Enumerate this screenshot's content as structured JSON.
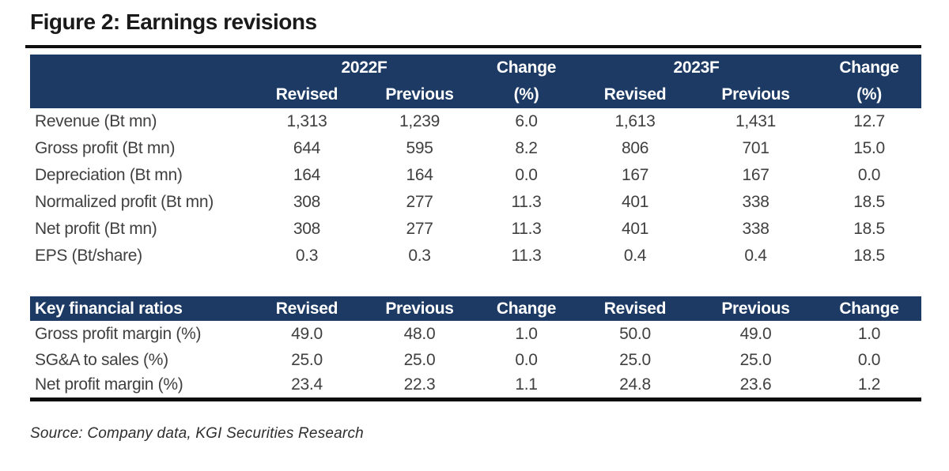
{
  "title": "Figure 2: Earnings revisions",
  "source": "Source: Company data, KGI Securities Research",
  "colors": {
    "header_bg": "#1c3a63",
    "header_text": "#ffffff",
    "body_text": "#404040",
    "rule": "#0e0e0e"
  },
  "earnings_table": {
    "header": {
      "year1": "2022F",
      "year2": "2023F",
      "change": "Change",
      "pct": "(%)",
      "revised": "Revised",
      "previous": "Previous"
    },
    "rows": [
      {
        "label": "Revenue (Bt mn)",
        "values": [
          "1,313",
          "1,239",
          "6.0",
          "1,613",
          "1,431",
          "12.7"
        ]
      },
      {
        "label": "Gross profit (Bt mn)",
        "values": [
          "644",
          "595",
          "8.2",
          "806",
          "701",
          "15.0"
        ]
      },
      {
        "label": "Depreciation (Bt mn)",
        "values": [
          "164",
          "164",
          "0.0",
          "167",
          "167",
          "0.0"
        ]
      },
      {
        "label": "Normalized profit (Bt mn)",
        "values": [
          "308",
          "277",
          "11.3",
          "401",
          "338",
          "18.5"
        ]
      },
      {
        "label": "Net profit (Bt mn)",
        "values": [
          "308",
          "277",
          "11.3",
          "401",
          "338",
          "18.5"
        ]
      },
      {
        "label": "EPS (Bt/share)",
        "values": [
          "0.3",
          "0.3",
          "11.3",
          "0.4",
          "0.4",
          "18.5"
        ]
      }
    ]
  },
  "ratios_table": {
    "header": {
      "title": "Key financial ratios",
      "revised": "Revised",
      "previous": "Previous",
      "change": "Change"
    },
    "rows": [
      {
        "label": "Gross profit margin (%)",
        "values": [
          "49.0",
          "48.0",
          "1.0",
          "50.0",
          "49.0",
          "1.0"
        ]
      },
      {
        "label": "SG&A to sales (%)",
        "values": [
          "25.0",
          "25.0",
          "0.0",
          "25.0",
          "25.0",
          "0.0"
        ]
      },
      {
        "label": "Net profit margin (%)",
        "values": [
          "23.4",
          "22.3",
          "1.1",
          "24.8",
          "23.6",
          "1.2"
        ]
      }
    ]
  }
}
